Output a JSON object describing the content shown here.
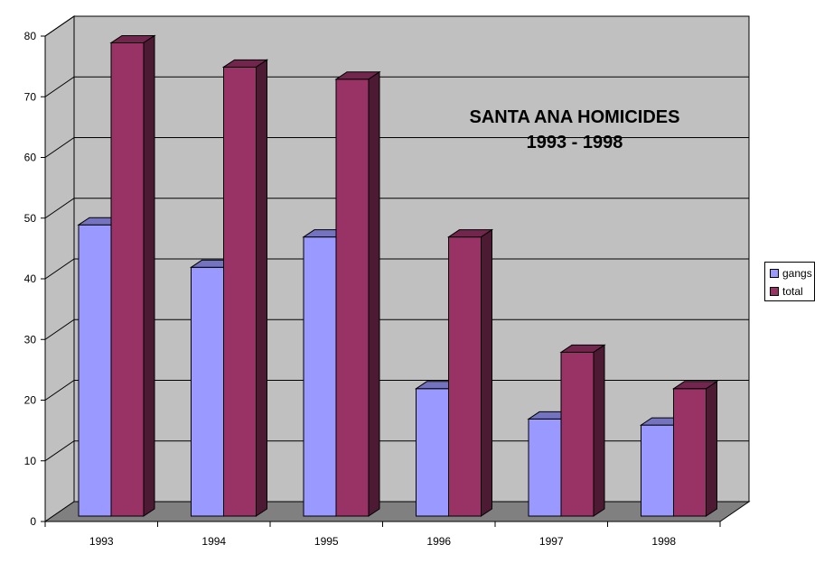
{
  "chart_data": {
    "type": "bar",
    "title": [
      "SANTA ANA HOMICIDES",
      "1993 - 1998"
    ],
    "categories": [
      "1993",
      "1994",
      "1995",
      "1996",
      "1997",
      "1998"
    ],
    "series": [
      {
        "name": "gangs",
        "values": [
          48,
          41,
          46,
          21,
          16,
          15
        ],
        "color": "#9999ff"
      },
      {
        "name": "total",
        "values": [
          78,
          74,
          72,
          46,
          27,
          21
        ],
        "color": "#993366"
      }
    ],
    "ylim": [
      0,
      80
    ],
    "yticks": [
      "0",
      "10",
      "20",
      "30",
      "40",
      "50",
      "60",
      "70",
      "80"
    ],
    "grid": true,
    "legend": "right",
    "style": "3d-clustered-column",
    "colors": {
      "wall": "#c0c0c0",
      "floor": "#808080",
      "gridline": "#000000"
    }
  }
}
